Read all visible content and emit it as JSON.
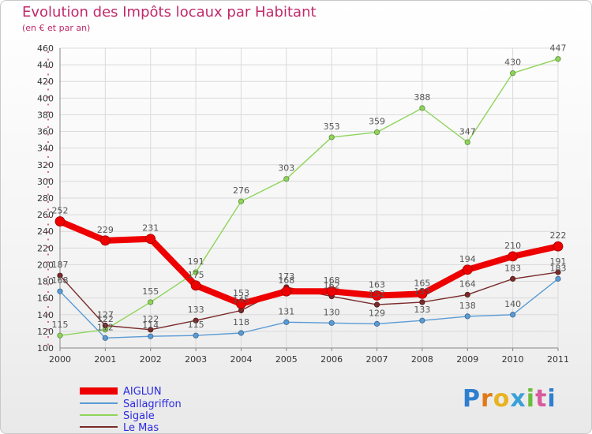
{
  "header": {
    "title": "Evolution des Impôts locaux par Habitant",
    "subtitle": "(en € et par an)"
  },
  "brand": {
    "logo_text": "Proxiti",
    "letter_colors": [
      "#2f7fd0",
      "#e07a18",
      "#e8b322",
      "#3aa0d8",
      "#6bbd3c",
      "#d85b9e",
      "#2f7fd0"
    ]
  },
  "chart_data": {
    "type": "line",
    "title": "Evolution des Impôts locaux par Habitant",
    "subtitle": "(en € et par an)",
    "x": [
      "2000",
      "2001",
      "2002",
      "2003",
      "2004",
      "2005",
      "2006",
      "2007",
      "2008",
      "2009",
      "2010",
      "2011"
    ],
    "ylim": [
      100,
      460
    ],
    "yticks": [
      100,
      120,
      140,
      160,
      180,
      200,
      220,
      240,
      260,
      280,
      300,
      320,
      340,
      360,
      380,
      400,
      420,
      440,
      460
    ],
    "grid": true,
    "legend_position": "bottom-left",
    "series": [
      {
        "name": "AIGLUN",
        "color": "#ee0000",
        "values": [
          252,
          229,
          231,
          175,
          153,
          168,
          168,
          163,
          165,
          194,
          210,
          222
        ]
      },
      {
        "name": "Sallagriffon",
        "color": "#5a9bd5",
        "values": [
          168,
          112,
          114,
          115,
          118,
          131,
          130,
          129,
          133,
          138,
          140,
          183
        ]
      },
      {
        "name": "Sigale",
        "color": "#8fd45a",
        "values": [
          115,
          122,
          155,
          191,
          276,
          303,
          353,
          359,
          388,
          347,
          430,
          447
        ]
      },
      {
        "name": "Le Mas",
        "color": "#7a2a2a",
        "values": [
          187,
          127,
          122,
          133,
          145,
          173,
          162,
          152,
          155,
          164,
          183,
          191
        ]
      }
    ]
  }
}
